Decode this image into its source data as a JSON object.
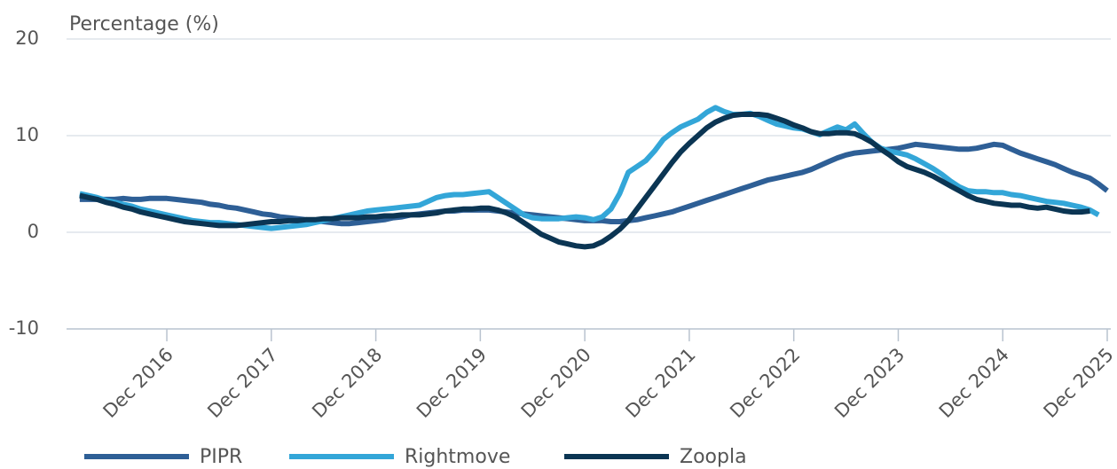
{
  "chart_data": {
    "type": "line",
    "y_label": "Percentage (%)",
    "categories": [
      "Feb 2016",
      "Mar 2016",
      "Apr 2016",
      "May 2016",
      "Jun 2016",
      "Jul 2016",
      "Aug 2016",
      "Sep 2016",
      "Oct 2016",
      "Nov 2016",
      "Dec 2016",
      "Jan 2017",
      "Feb 2017",
      "Mar 2017",
      "Apr 2017",
      "May 2017",
      "Jun 2017",
      "Jul 2017",
      "Aug 2017",
      "Sep 2017",
      "Oct 2017",
      "Nov 2017",
      "Dec 2017",
      "Jan 2018",
      "Feb 2018",
      "Mar 2018",
      "Apr 2018",
      "May 2018",
      "Jun 2018",
      "Jul 2018",
      "Aug 2018",
      "Sep 2018",
      "Oct 2018",
      "Nov 2018",
      "Dec 2018",
      "Jan 2019",
      "Feb 2019",
      "Mar 2019",
      "Apr 2019",
      "May 2019",
      "Jun 2019",
      "Jul 2019",
      "Aug 2019",
      "Sep 2019",
      "Oct 2019",
      "Nov 2019",
      "Dec 2019",
      "Jan 2020",
      "Feb 2020",
      "Mar 2020",
      "Apr 2020",
      "May 2020",
      "Jun 2020",
      "Jul 2020",
      "Aug 2020",
      "Sep 2020",
      "Oct 2020",
      "Nov 2020",
      "Dec 2020",
      "Jan 2021",
      "Feb 2021",
      "Mar 2021",
      "Apr 2021",
      "May 2021",
      "Jun 2021",
      "Jul 2021",
      "Aug 2021",
      "Sep 2021",
      "Oct 2021",
      "Nov 2021",
      "Dec 2021",
      "Jan 2022",
      "Feb 2022",
      "Mar 2022",
      "Apr 2022",
      "May 2022",
      "Jun 2022",
      "Jul 2022",
      "Aug 2022",
      "Sep 2022",
      "Oct 2022",
      "Nov 2022",
      "Dec 2022",
      "Jan 2023",
      "Feb 2023",
      "Mar 2023",
      "Apr 2023",
      "May 2023",
      "Jun 2023",
      "Jul 2023",
      "Aug 2023",
      "Sep 2023",
      "Oct 2023",
      "Nov 2023",
      "Dec 2023",
      "Jan 2024",
      "Feb 2024",
      "Mar 2024",
      "Apr 2024",
      "May 2024",
      "Jun 2024",
      "Jul 2024",
      "Aug 2024",
      "Sep 2024",
      "Oct 2024",
      "Nov 2024",
      "Dec 2024",
      "Jan 2025",
      "Feb 2025",
      "Mar 2025",
      "Apr 2025",
      "May 2025",
      "Jun 2025",
      "Jul 2025",
      "Aug 2025",
      "Sep 2025",
      "Oct 2025",
      "Nov 2025",
      "Dec 2025"
    ],
    "xticks": [
      "Dec 2016",
      "Dec 2017",
      "Dec 2018",
      "Dec 2019",
      "Dec 2020",
      "Dec 2021",
      "Dec 2022",
      "Dec 2023",
      "Dec 2024",
      "Dec 2025"
    ],
    "ylim": [
      -10,
      20
    ],
    "yticks": [
      -10,
      0,
      10,
      20
    ],
    "grid": true,
    "legend": "bottom",
    "series": [
      {
        "name": "PIPR",
        "color": "#2e5f96",
        "values": [
          3.4,
          3.4,
          3.4,
          3.4,
          3.4,
          3.5,
          3.4,
          3.4,
          3.5,
          3.5,
          3.5,
          3.4,
          3.3,
          3.2,
          3.1,
          2.9,
          2.8,
          2.6,
          2.5,
          2.3,
          2.1,
          1.9,
          1.8,
          1.6,
          1.5,
          1.4,
          1.3,
          1.2,
          1.1,
          1.0,
          0.9,
          0.9,
          1.0,
          1.1,
          1.2,
          1.3,
          1.5,
          1.6,
          1.8,
          1.9,
          2.0,
          2.1,
          2.2,
          2.2,
          2.3,
          2.3,
          2.3,
          2.3,
          2.2,
          2.1,
          2.0,
          1.9,
          1.8,
          1.7,
          1.6,
          1.5,
          1.4,
          1.3,
          1.2,
          1.2,
          1.2,
          1.1,
          1.1,
          1.2,
          1.3,
          1.5,
          1.7,
          1.9,
          2.1,
          2.4,
          2.7,
          3.0,
          3.3,
          3.6,
          3.9,
          4.2,
          4.5,
          4.8,
          5.1,
          5.4,
          5.6,
          5.8,
          6.0,
          6.2,
          6.5,
          6.9,
          7.3,
          7.7,
          8.0,
          8.2,
          8.3,
          8.4,
          8.5,
          8.6,
          8.7,
          8.9,
          9.1,
          9.0,
          8.9,
          8.8,
          8.7,
          8.6,
          8.6,
          8.7,
          8.9,
          9.1,
          9.0,
          8.6,
          8.2,
          7.9,
          7.6,
          7.3,
          7.0,
          6.6,
          6.2,
          5.9,
          5.6,
          5.0,
          4.3
        ]
      },
      {
        "name": "Rightmove",
        "color": "#33a6d8",
        "values": [
          4.0,
          3.8,
          3.6,
          3.3,
          3.1,
          2.9,
          2.7,
          2.4,
          2.2,
          2.0,
          1.8,
          1.6,
          1.4,
          1.2,
          1.1,
          1.0,
          1.0,
          0.9,
          0.8,
          0.7,
          0.6,
          0.5,
          0.4,
          0.5,
          0.6,
          0.7,
          0.8,
          1.0,
          1.2,
          1.4,
          1.6,
          1.8,
          2.0,
          2.2,
          2.3,
          2.4,
          2.5,
          2.6,
          2.7,
          2.8,
          3.2,
          3.6,
          3.8,
          3.9,
          3.9,
          4.0,
          4.1,
          4.2,
          3.6,
          3.0,
          2.4,
          1.8,
          1.5,
          1.4,
          1.4,
          1.4,
          1.5,
          1.6,
          1.5,
          1.3,
          1.6,
          2.4,
          4.0,
          6.2,
          6.8,
          7.4,
          8.4,
          9.6,
          10.3,
          10.9,
          11.3,
          11.7,
          12.4,
          12.9,
          12.5,
          12.2,
          12.2,
          12.3,
          12.0,
          11.6,
          11.2,
          11.0,
          10.8,
          10.7,
          10.4,
          10.1,
          10.5,
          10.9,
          10.6,
          11.2,
          10.2,
          9.3,
          8.7,
          8.4,
          8.2,
          8.0,
          7.6,
          7.1,
          6.6,
          6.0,
          5.3,
          4.7,
          4.3,
          4.2,
          4.2,
          4.1,
          4.1,
          3.9,
          3.8,
          3.6,
          3.4,
          3.2,
          3.1,
          3.0,
          2.8,
          2.6,
          2.3,
          1.8,
          null
        ]
      },
      {
        "name": "Zoopla",
        "color": "#0b3553",
        "values": [
          3.8,
          3.6,
          3.4,
          3.1,
          2.9,
          2.6,
          2.4,
          2.1,
          1.9,
          1.7,
          1.5,
          1.3,
          1.1,
          1.0,
          0.9,
          0.8,
          0.7,
          0.7,
          0.7,
          0.8,
          0.9,
          1.0,
          1.1,
          1.1,
          1.2,
          1.2,
          1.3,
          1.3,
          1.4,
          1.4,
          1.5,
          1.5,
          1.5,
          1.6,
          1.6,
          1.7,
          1.7,
          1.8,
          1.8,
          1.8,
          1.9,
          2.0,
          2.2,
          2.3,
          2.4,
          2.4,
          2.5,
          2.5,
          2.3,
          2.0,
          1.6,
          1.0,
          0.4,
          -0.2,
          -0.6,
          -1.0,
          -1.2,
          -1.4,
          -1.5,
          -1.4,
          -1.0,
          -0.4,
          0.3,
          1.2,
          2.4,
          3.6,
          4.8,
          6.0,
          7.2,
          8.3,
          9.2,
          10.0,
          10.8,
          11.4,
          11.8,
          12.1,
          12.2,
          12.2,
          12.2,
          12.1,
          11.8,
          11.5,
          11.1,
          10.8,
          10.4,
          10.2,
          10.2,
          10.3,
          10.3,
          10.2,
          9.8,
          9.3,
          8.6,
          8.0,
          7.3,
          6.8,
          6.5,
          6.2,
          5.8,
          5.3,
          4.8,
          4.3,
          3.8,
          3.4,
          3.2,
          3.0,
          2.9,
          2.8,
          2.8,
          2.6,
          2.5,
          2.6,
          2.4,
          2.2,
          2.1,
          2.1,
          2.2,
          null,
          null
        ]
      }
    ]
  }
}
